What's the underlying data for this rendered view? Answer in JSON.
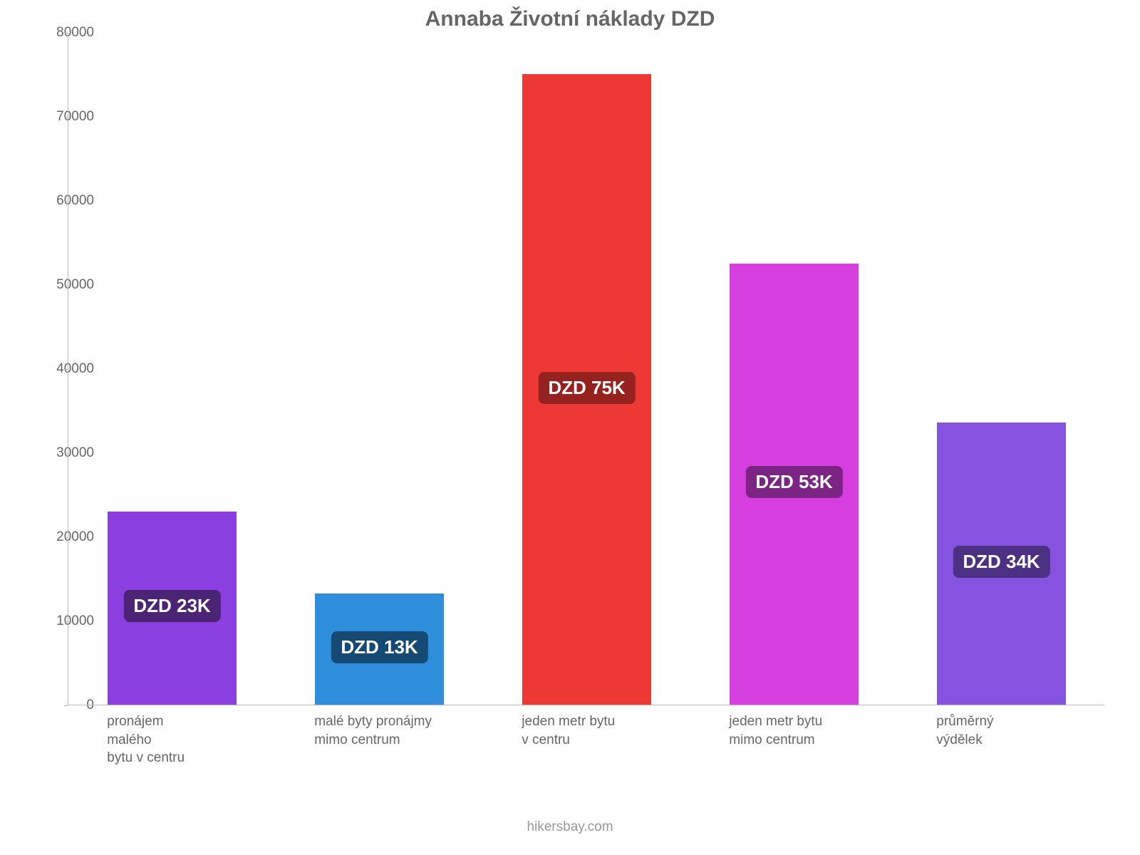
{
  "chart": {
    "type": "bar",
    "title": "Annaba Životní náklady DZD",
    "title_fontsize": 30,
    "title_color": "#666666",
    "background_color": "#ffffff",
    "axis_color": "#bbbbbb",
    "tick_label_color": "#666666",
    "tick_label_fontsize": 19,
    "x_label_fontsize": 19,
    "x_label_color": "#666666",
    "ylim": [
      0,
      80000
    ],
    "ytick_step": 10000,
    "yticks": [
      {
        "value": 0,
        "label": "0"
      },
      {
        "value": 10000,
        "label": "10000"
      },
      {
        "value": 20000,
        "label": "20000"
      },
      {
        "value": 30000,
        "label": "30000"
      },
      {
        "value": 40000,
        "label": "40000"
      },
      {
        "value": 50000,
        "label": "50000"
      },
      {
        "value": 60000,
        "label": "60000"
      },
      {
        "value": 70000,
        "label": "70000"
      },
      {
        "value": 80000,
        "label": "80000"
      }
    ],
    "bar_width_ratio": 0.62,
    "value_label_fontsize": 26,
    "value_label_text_color": "#ffffff",
    "source": "hikersbay.com",
    "source_color": "#999999",
    "bars": [
      {
        "category_lines": [
          "pronájem",
          "malého",
          "bytu v centru"
        ],
        "value": 23000,
        "display_label": "DZD 23K",
        "bar_color": "#8c3fe0",
        "label_bg_color": "#4b2476"
      },
      {
        "category_lines": [
          "malé byty pronájmy",
          "mimo centrum"
        ],
        "value": 13200,
        "display_label": "DZD 13K",
        "bar_color": "#2f8edc",
        "label_bg_color": "#144a74"
      },
      {
        "category_lines": [
          "jeden metr bytu",
          "v centru"
        ],
        "value": 75000,
        "display_label": "DZD 75K",
        "bar_color": "#ed3833",
        "label_bg_color": "#95221f"
      },
      {
        "category_lines": [
          "jeden metr bytu",
          "mimo centrum"
        ],
        "value": 52500,
        "display_label": "DZD 53K",
        "bar_color": "#d63ee0",
        "label_bg_color": "#7c2483"
      },
      {
        "category_lines": [
          "průměrný",
          "výdělek"
        ],
        "value": 33600,
        "display_label": "DZD 34K",
        "bar_color": "#8553e0",
        "label_bg_color": "#4c3083"
      }
    ]
  }
}
